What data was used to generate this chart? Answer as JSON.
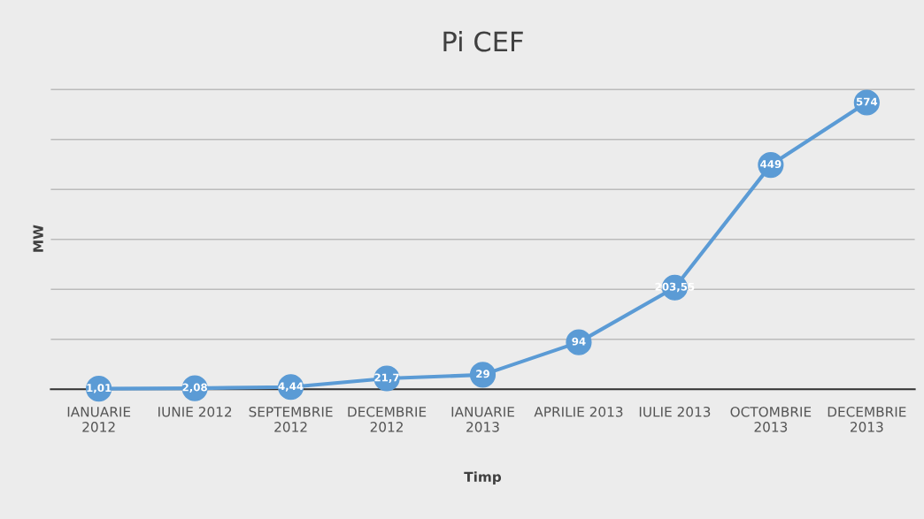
{
  "chart_data": {
    "type": "line",
    "title": "Pi CEF",
    "xlabel": "Timp",
    "ylabel": "MW",
    "categories": [
      "IANUARIE\n2012",
      "IUNIE 2012",
      "SEPTEMBRIE\n2012",
      "DECEMBRIE\n2012",
      "IANUARIE\n2013",
      "APRILIE 2013",
      "IULIE 2013",
      "OCTOMBRIE\n2013",
      "DECEMBRIE\n2013"
    ],
    "series": [
      {
        "color": "#5b9bd5",
        "values": [
          1.01,
          2.08,
          4.44,
          21.7,
          29,
          94,
          203.55,
          449,
          574
        ],
        "value_labels": [
          "1,01",
          "2,08",
          "4,44",
          "21,7",
          "29",
          "94",
          "203,55",
          "449",
          "574"
        ]
      }
    ],
    "grid": "y",
    "tick_labels": "x",
    "marker": "circle",
    "line_style": "solid",
    "legend": false
  }
}
